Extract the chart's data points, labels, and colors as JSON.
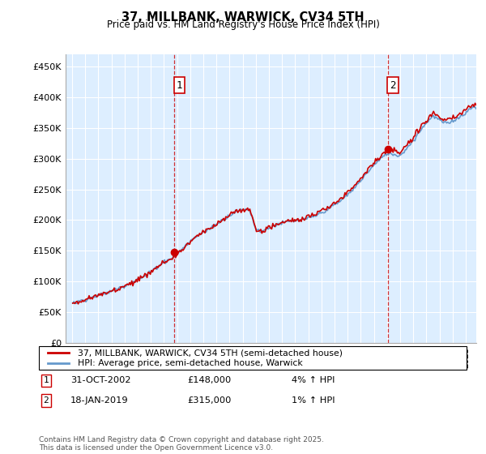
{
  "title": "37, MILLBANK, WARWICK, CV34 5TH",
  "subtitle": "Price paid vs. HM Land Registry's House Price Index (HPI)",
  "ylim": [
    0,
    470000
  ],
  "yticks": [
    0,
    50000,
    100000,
    150000,
    200000,
    250000,
    300000,
    350000,
    400000,
    450000
  ],
  "ytick_labels": [
    "£0",
    "£50K",
    "£100K",
    "£150K",
    "£200K",
    "£250K",
    "£300K",
    "£350K",
    "£400K",
    "£450K"
  ],
  "hpi_color": "#6699cc",
  "price_color": "#cc0000",
  "bg_color": "#ddeeff",
  "legend_line1": "37, MILLBANK, WARWICK, CV34 5TH (semi-detached house)",
  "legend_line2": "HPI: Average price, semi-detached house, Warwick",
  "note1_date": "31-OCT-2002",
  "note1_price": "£148,000",
  "note1_hpi": "4% ↑ HPI",
  "note2_date": "18-JAN-2019",
  "note2_price": "£315,000",
  "note2_hpi": "1% ↑ HPI",
  "footer": "Contains HM Land Registry data © Crown copyright and database right 2025.\nThis data is licensed under the Open Government Licence v3.0.",
  "xtick_years": [
    1995,
    1996,
    1997,
    1998,
    1999,
    2000,
    2001,
    2002,
    2003,
    2004,
    2005,
    2006,
    2007,
    2008,
    2009,
    2010,
    2011,
    2012,
    2013,
    2014,
    2015,
    2016,
    2017,
    2018,
    2019,
    2020,
    2021,
    2022,
    2023,
    2024,
    2025
  ],
  "sale1_year": 2002,
  "sale1_month": 10,
  "sale1_value": 148000,
  "sale2_year": 2019,
  "sale2_month": 1,
  "sale2_value": 315000
}
